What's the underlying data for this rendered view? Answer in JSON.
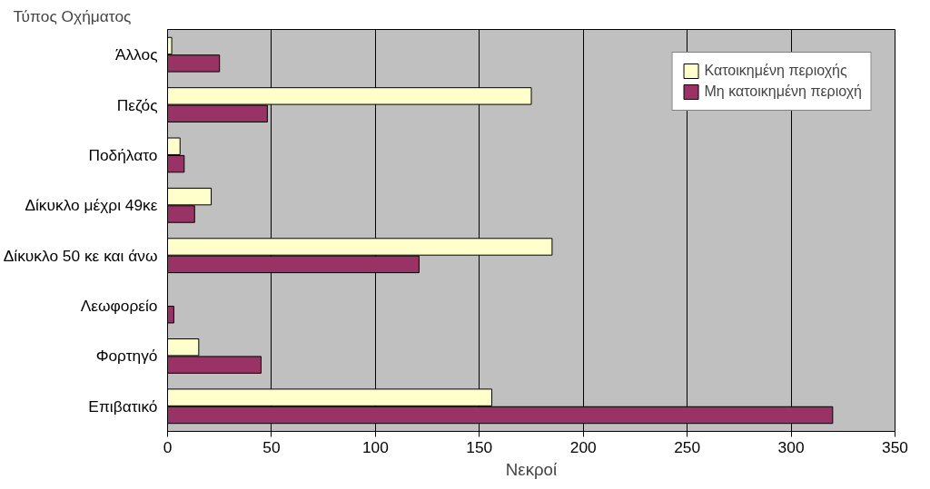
{
  "chart_data": {
    "type": "bar",
    "orientation": "horizontal",
    "ylabel": "Τύπος Οχήματος",
    "xlabel": "Νεκροί",
    "categories": [
      "Άλλος",
      "Πεζός",
      "Ποδήλατο",
      "Δίκυκλο μέχρι 49κε",
      "Δίκυκλο 50 κε και άνω",
      "Λεωφορείο",
      "Φορτηγό",
      "Επιβατικό"
    ],
    "series": [
      {
        "name": "Κατοικημένη περιοχής",
        "color": "#ffffcc",
        "values": [
          2,
          175,
          6,
          21,
          185,
          0,
          15,
          156
        ]
      },
      {
        "name": "Μη κατοικημένη περιοχή",
        "color": "#993366",
        "values": [
          25,
          48,
          8,
          13,
          121,
          3,
          45,
          320
        ]
      }
    ],
    "xlim": [
      0,
      350
    ],
    "xticks": [
      0,
      50,
      100,
      150,
      200,
      250,
      300,
      350
    ],
    "grid": "x",
    "legend": "top right"
  }
}
